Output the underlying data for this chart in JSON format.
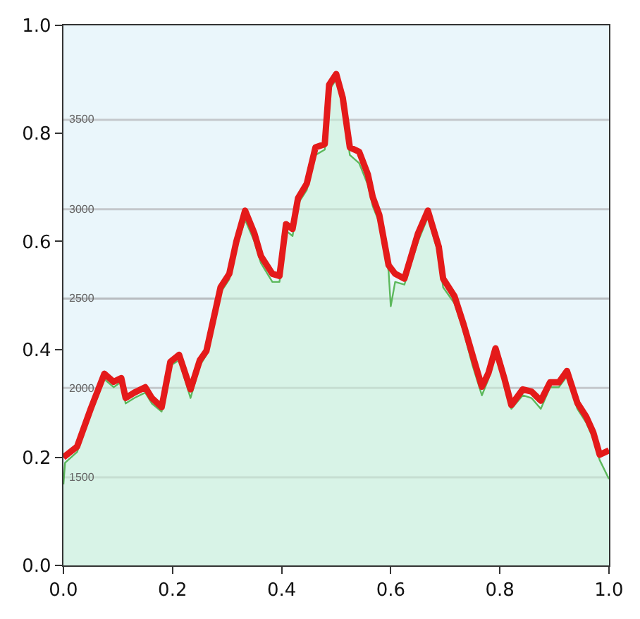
{
  "chart_data": {
    "type": "line",
    "xlim": [
      0,
      1
    ],
    "ylim": [
      0,
      1
    ],
    "xticks": [
      {
        "value": 0,
        "label": "0.0"
      },
      {
        "value": 0.2,
        "label": "0.2"
      },
      {
        "value": 0.4,
        "label": "0.4"
      },
      {
        "value": 0.6,
        "label": "0.6"
      },
      {
        "value": 0.8,
        "label": "0.8"
      },
      {
        "value": 1,
        "label": "1.0"
      }
    ],
    "yticks": [
      {
        "value": 0,
        "label": "0.0"
      },
      {
        "value": 0.2,
        "label": "0.2"
      },
      {
        "value": 0.4,
        "label": "0.4"
      },
      {
        "value": 0.6,
        "label": "0.6"
      },
      {
        "value": 0.8,
        "label": "0.8"
      },
      {
        "value": 1,
        "label": "1.0"
      }
    ],
    "grid": false,
    "marker": "none",
    "y2lim": [
      1007,
      4028
    ],
    "y2ticks": [
      1500,
      2000,
      2500,
      3000,
      3500
    ],
    "ref_lines": [
      {
        "axis": "y2",
        "value": 1500,
        "color": "#c4c8cc"
      },
      {
        "axis": "y2",
        "value": 2000,
        "color": "#c4c8cc"
      },
      {
        "axis": "y2",
        "value": 2500,
        "color": "#b8bcc0"
      },
      {
        "axis": "y2",
        "value": 3000,
        "color": "#c4c8cc"
      },
      {
        "axis": "y2",
        "value": 3500,
        "color": "#c4c8cc"
      }
    ],
    "series": [
      {
        "type": "area",
        "color": "#5cb85c",
        "x": [
          0,
          0.003,
          0.025,
          0.05,
          0.075,
          0.092,
          0.106,
          0.114,
          0.13,
          0.15,
          0.162,
          0.18,
          0.196,
          0.212,
          0.233,
          0.25,
          0.262,
          0.288,
          0.304,
          0.317,
          0.333,
          0.35,
          0.362,
          0.383,
          0.396,
          0.408,
          0.42,
          0.43,
          0.446,
          0.462,
          0.479,
          0.487,
          0.5,
          0.512,
          0.525,
          0.542,
          0.558,
          0.567,
          0.579,
          0.596,
          0.6,
          0.608,
          0.625,
          0.65,
          0.668,
          0.688,
          0.696,
          0.717,
          0.733,
          0.75,
          0.767,
          0.779,
          0.792,
          0.808,
          0.821,
          0.842,
          0.858,
          0.875,
          0.892,
          0.908,
          0.923,
          0.942,
          0.958,
          0.971,
          0.983,
          1.0
        ],
        "values": [
          0.15,
          0.19,
          0.21,
          0.28,
          0.345,
          0.33,
          0.34,
          0.3,
          0.31,
          0.32,
          0.3,
          0.285,
          0.37,
          0.38,
          0.31,
          0.37,
          0.39,
          0.505,
          0.53,
          0.59,
          0.64,
          0.6,
          0.56,
          0.525,
          0.525,
          0.62,
          0.61,
          0.67,
          0.695,
          0.76,
          0.77,
          0.88,
          0.9,
          0.855,
          0.76,
          0.745,
          0.705,
          0.665,
          0.635,
          0.545,
          0.48,
          0.525,
          0.52,
          0.6,
          0.645,
          0.575,
          0.515,
          0.485,
          0.435,
          0.37,
          0.315,
          0.345,
          0.39,
          0.335,
          0.29,
          0.315,
          0.31,
          0.29,
          0.33,
          0.33,
          0.35,
          0.29,
          0.265,
          0.235,
          0.195,
          0.16
        ]
      },
      {
        "color": "#e41a1a",
        "line_style": "solid",
        "x": [
          0,
          0.025,
          0.05,
          0.075,
          0.092,
          0.106,
          0.114,
          0.13,
          0.15,
          0.162,
          0.18,
          0.196,
          0.212,
          0.233,
          0.25,
          0.262,
          0.288,
          0.304,
          0.317,
          0.333,
          0.35,
          0.362,
          0.383,
          0.396,
          0.408,
          0.42,
          0.43,
          0.446,
          0.462,
          0.479,
          0.487,
          0.5,
          0.512,
          0.525,
          0.542,
          0.558,
          0.567,
          0.579,
          0.596,
          0.608,
          0.625,
          0.65,
          0.668,
          0.688,
          0.696,
          0.717,
          0.733,
          0.75,
          0.767,
          0.779,
          0.792,
          0.808,
          0.821,
          0.842,
          0.858,
          0.875,
          0.892,
          0.908,
          0.923,
          0.942,
          0.958,
          0.971,
          0.983,
          1.0
        ],
        "values": [
          0.2,
          0.22,
          0.29,
          0.355,
          0.34,
          0.347,
          0.31,
          0.32,
          0.33,
          0.31,
          0.293,
          0.377,
          0.39,
          0.326,
          0.38,
          0.397,
          0.515,
          0.54,
          0.6,
          0.657,
          0.615,
          0.573,
          0.54,
          0.536,
          0.632,
          0.623,
          0.68,
          0.707,
          0.774,
          0.78,
          0.89,
          0.91,
          0.866,
          0.774,
          0.766,
          0.724,
          0.682,
          0.649,
          0.556,
          0.54,
          0.531,
          0.615,
          0.657,
          0.59,
          0.531,
          0.498,
          0.448,
          0.389,
          0.331,
          0.356,
          0.402,
          0.347,
          0.297,
          0.326,
          0.322,
          0.305,
          0.339,
          0.339,
          0.36,
          0.301,
          0.276,
          0.247,
          0.205,
          0.213
        ]
      }
    ]
  }
}
